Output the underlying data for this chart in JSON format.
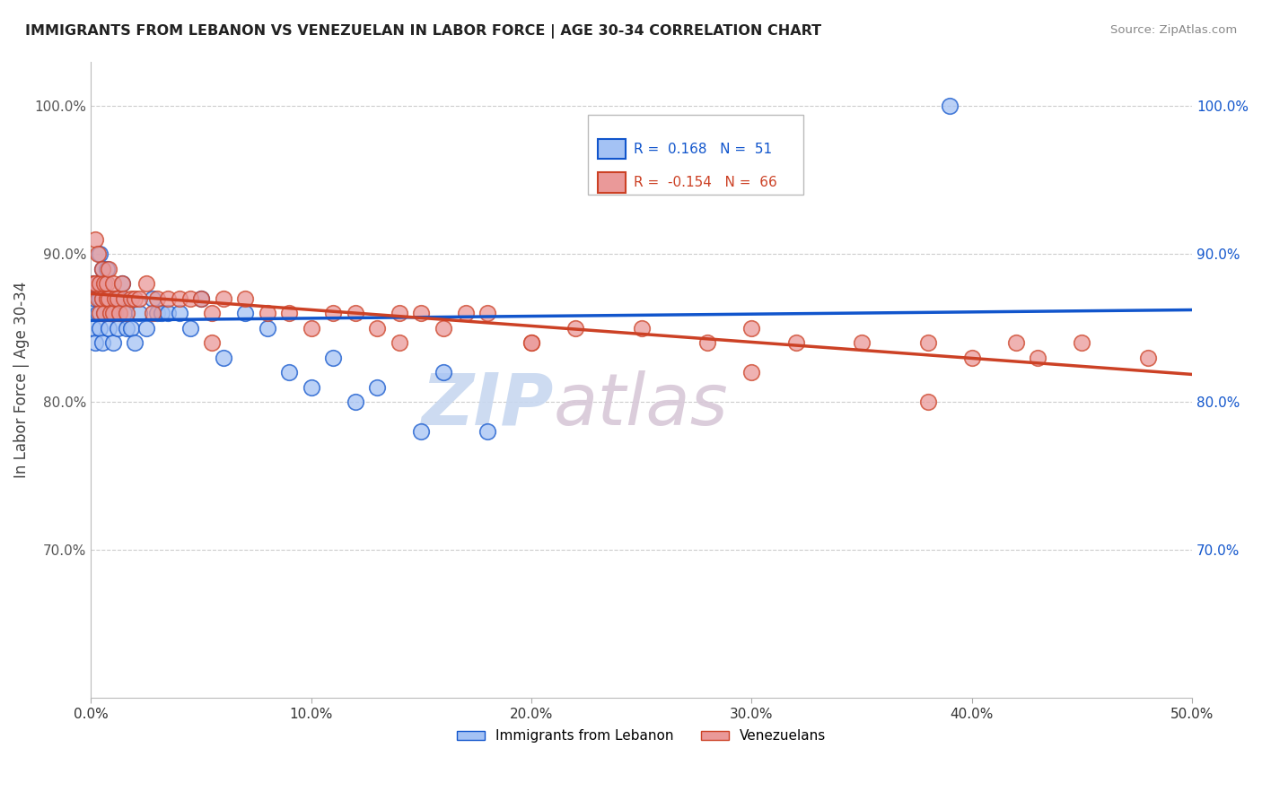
{
  "title": "IMMIGRANTS FROM LEBANON VS VENEZUELAN IN LABOR FORCE | AGE 30-34 CORRELATION CHART",
  "source": "Source: ZipAtlas.com",
  "ylabel": "In Labor Force | Age 30-34",
  "xmin": 0.0,
  "xmax": 0.5,
  "ymin": 0.6,
  "ymax": 1.03,
  "yticks": [
    0.7,
    0.8,
    0.9,
    1.0
  ],
  "ytick_labels": [
    "70.0%",
    "80.0%",
    "90.0%",
    "100.0%"
  ],
  "xticks": [
    0.0,
    0.1,
    0.2,
    0.3,
    0.4,
    0.5
  ],
  "xtick_labels": [
    "0.0%",
    "10.0%",
    "20.0%",
    "30.0%",
    "40.0%",
    "50.0%"
  ],
  "legend_labels": [
    "Immigrants from Lebanon",
    "Venezuelans"
  ],
  "R_lebanon": 0.168,
  "N_lebanon": 51,
  "R_venezuelan": -0.154,
  "N_venezuelan": 66,
  "color_lebanon": "#a4c2f4",
  "color_venezuelan": "#ea9999",
  "trendline_color_lebanon": "#1155cc",
  "trendline_color_venezuelan": "#cc4125",
  "watermark": "ZIPatlas",
  "watermark_color_zip": "#c8d8f0",
  "watermark_color_atlas": "#d8c8d8",
  "lebanon_x": [
    0.001,
    0.001,
    0.002,
    0.002,
    0.003,
    0.003,
    0.004,
    0.004,
    0.004,
    0.005,
    0.005,
    0.005,
    0.006,
    0.006,
    0.007,
    0.007,
    0.008,
    0.008,
    0.009,
    0.009,
    0.01,
    0.01,
    0.011,
    0.012,
    0.013,
    0.014,
    0.015,
    0.016,
    0.018,
    0.02,
    0.022,
    0.025,
    0.028,
    0.03,
    0.032,
    0.035,
    0.04,
    0.045,
    0.05,
    0.06,
    0.07,
    0.08,
    0.09,
    0.1,
    0.11,
    0.12,
    0.13,
    0.15,
    0.16,
    0.18,
    0.39
  ],
  "lebanon_y": [
    0.88,
    0.85,
    0.87,
    0.84,
    0.88,
    0.86,
    0.9,
    0.87,
    0.85,
    0.89,
    0.87,
    0.84,
    0.88,
    0.86,
    0.89,
    0.87,
    0.87,
    0.85,
    0.87,
    0.86,
    0.86,
    0.84,
    0.86,
    0.85,
    0.87,
    0.88,
    0.86,
    0.85,
    0.85,
    0.84,
    0.86,
    0.85,
    0.87,
    0.86,
    0.86,
    0.86,
    0.86,
    0.85,
    0.87,
    0.83,
    0.86,
    0.85,
    0.82,
    0.81,
    0.83,
    0.8,
    0.81,
    0.78,
    0.82,
    0.78,
    1.0
  ],
  "venezuelan_x": [
    0.001,
    0.002,
    0.002,
    0.003,
    0.003,
    0.004,
    0.004,
    0.005,
    0.005,
    0.006,
    0.006,
    0.007,
    0.007,
    0.008,
    0.008,
    0.009,
    0.01,
    0.01,
    0.011,
    0.012,
    0.013,
    0.014,
    0.015,
    0.016,
    0.018,
    0.02,
    0.022,
    0.025,
    0.028,
    0.03,
    0.035,
    0.04,
    0.045,
    0.05,
    0.055,
    0.06,
    0.07,
    0.08,
    0.09,
    0.1,
    0.11,
    0.12,
    0.13,
    0.14,
    0.15,
    0.16,
    0.17,
    0.18,
    0.2,
    0.22,
    0.25,
    0.28,
    0.3,
    0.32,
    0.35,
    0.38,
    0.4,
    0.42,
    0.45,
    0.48,
    0.055,
    0.14,
    0.2,
    0.3,
    0.38,
    0.43
  ],
  "venezuelan_y": [
    0.88,
    0.91,
    0.88,
    0.9,
    0.87,
    0.88,
    0.86,
    0.89,
    0.87,
    0.88,
    0.86,
    0.88,
    0.87,
    0.89,
    0.87,
    0.86,
    0.88,
    0.86,
    0.87,
    0.87,
    0.86,
    0.88,
    0.87,
    0.86,
    0.87,
    0.87,
    0.87,
    0.88,
    0.86,
    0.87,
    0.87,
    0.87,
    0.87,
    0.87,
    0.86,
    0.87,
    0.87,
    0.86,
    0.86,
    0.85,
    0.86,
    0.86,
    0.85,
    0.86,
    0.86,
    0.85,
    0.86,
    0.86,
    0.84,
    0.85,
    0.85,
    0.84,
    0.85,
    0.84,
    0.84,
    0.84,
    0.83,
    0.84,
    0.84,
    0.83,
    0.84,
    0.84,
    0.84,
    0.82,
    0.8,
    0.83
  ]
}
